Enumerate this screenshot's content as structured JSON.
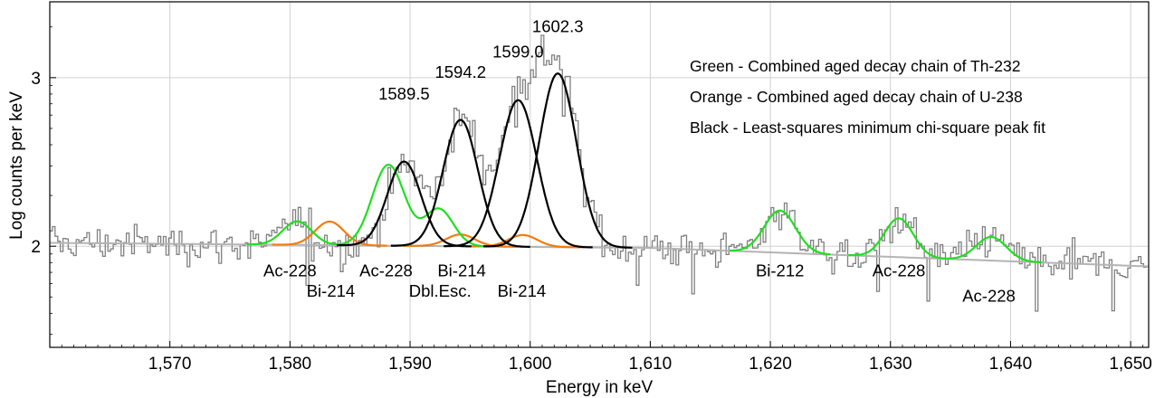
{
  "chart_data": {
    "type": "line",
    "title": "",
    "xlabel": "Energy in keV",
    "ylabel": "Log counts per keV",
    "xlim": [
      1560,
      1651.5
    ],
    "ylim": [
      1.4,
      3.45
    ],
    "y_scale": "linear (log counts)",
    "grid": true,
    "x_ticks": [
      {
        "value": 1570,
        "label": "1,570"
      },
      {
        "value": 1580,
        "label": "1,580"
      },
      {
        "value": 1590,
        "label": "1,590"
      },
      {
        "value": 1600,
        "label": "1,600"
      },
      {
        "value": 1610,
        "label": "1,610"
      },
      {
        "value": 1620,
        "label": "1,620"
      },
      {
        "value": 1630,
        "label": "1,630"
      },
      {
        "value": 1640,
        "label": "1,640"
      },
      {
        "value": 1650,
        "label": "1,650"
      }
    ],
    "y_ticks": [
      {
        "value": 2,
        "label": "2"
      },
      {
        "value": 3,
        "label": "3"
      }
    ],
    "legend": {
      "placement": "top-right",
      "entries": [
        "Green - Combined aged decay chain of Th-232",
        "Orange - Combined aged decay chain of U-238",
        "Black - Least-squares minimum chi-square peak fit"
      ]
    },
    "colors": {
      "spectrum": "#808080",
      "baseline": "#b4b4b4",
      "green": "#22dd22",
      "orange": "#f07c10",
      "black": "#000000",
      "grid": "#d0d0d0"
    },
    "series": [
      {
        "color_key": "spectrum",
        "kind": "measured spectrum (step)"
      },
      {
        "color_key": "baseline",
        "kind": "continuum",
        "x": [
          1560,
          1610,
          1651.5
        ],
        "y": [
          2.02,
          1.99,
          1.88
        ]
      },
      {
        "color_key": "green",
        "kind": "model",
        "peaks": [
          {
            "center": 1580.6,
            "height": 0.14,
            "width": 1.2
          },
          {
            "center": 1588.2,
            "height": 0.48,
            "width": 1.35
          },
          {
            "center": 1592.4,
            "height": 0.22,
            "width": 1.2
          },
          {
            "center": 1620.8,
            "height": 0.25,
            "width": 1.3
          },
          {
            "center": 1630.7,
            "height": 0.23,
            "width": 1.2
          },
          {
            "center": 1638.4,
            "height": 0.14,
            "width": 1.25
          }
        ]
      },
      {
        "color_key": "orange",
        "kind": "model",
        "peaks": [
          {
            "center": 1583.3,
            "height": 0.14,
            "width": 1.2
          },
          {
            "center": 1594.2,
            "height": 0.07,
            "width": 1.2
          },
          {
            "center": 1599.4,
            "height": 0.07,
            "width": 1.2
          }
        ]
      },
      {
        "color_key": "black",
        "kind": "fit",
        "peaks": [
          {
            "center": 1589.5,
            "height": 0.5,
            "width": 1.4
          },
          {
            "center": 1594.2,
            "height": 0.75,
            "width": 1.45
          },
          {
            "center": 1599.0,
            "height": 0.87,
            "width": 1.55
          },
          {
            "center": 1602.3,
            "height": 1.03,
            "width": 1.55
          }
        ]
      }
    ],
    "peak_labels": [
      {
        "text": "1589.5",
        "x": 1589.5,
        "y": 2.87
      },
      {
        "text": "1594.2",
        "x": 1594.2,
        "y": 3.0
      },
      {
        "text": "1599.0",
        "x": 1599.0,
        "y": 3.12
      },
      {
        "text": "1602.3",
        "x": 1602.3,
        "y": 3.27
      }
    ],
    "nuclide_labels": [
      {
        "text": "Ac-228",
        "x": 1580.0,
        "y": 1.82
      },
      {
        "text": "Bi-214",
        "x": 1583.4,
        "y": 1.7
      },
      {
        "text": "Ac-228",
        "x": 1588.0,
        "y": 1.82
      },
      {
        "text": "Dbl.Esc.",
        "x": 1592.5,
        "y": 1.7
      },
      {
        "text": "Bi-214",
        "x": 1594.3,
        "y": 1.82
      },
      {
        "text": "Bi-214",
        "x": 1599.3,
        "y": 1.7
      },
      {
        "text": "Bi-212",
        "x": 1620.8,
        "y": 1.82
      },
      {
        "text": "Ac-228",
        "x": 1630.7,
        "y": 1.82
      },
      {
        "text": "Ac-228",
        "x": 1638.2,
        "y": 1.67
      }
    ]
  }
}
